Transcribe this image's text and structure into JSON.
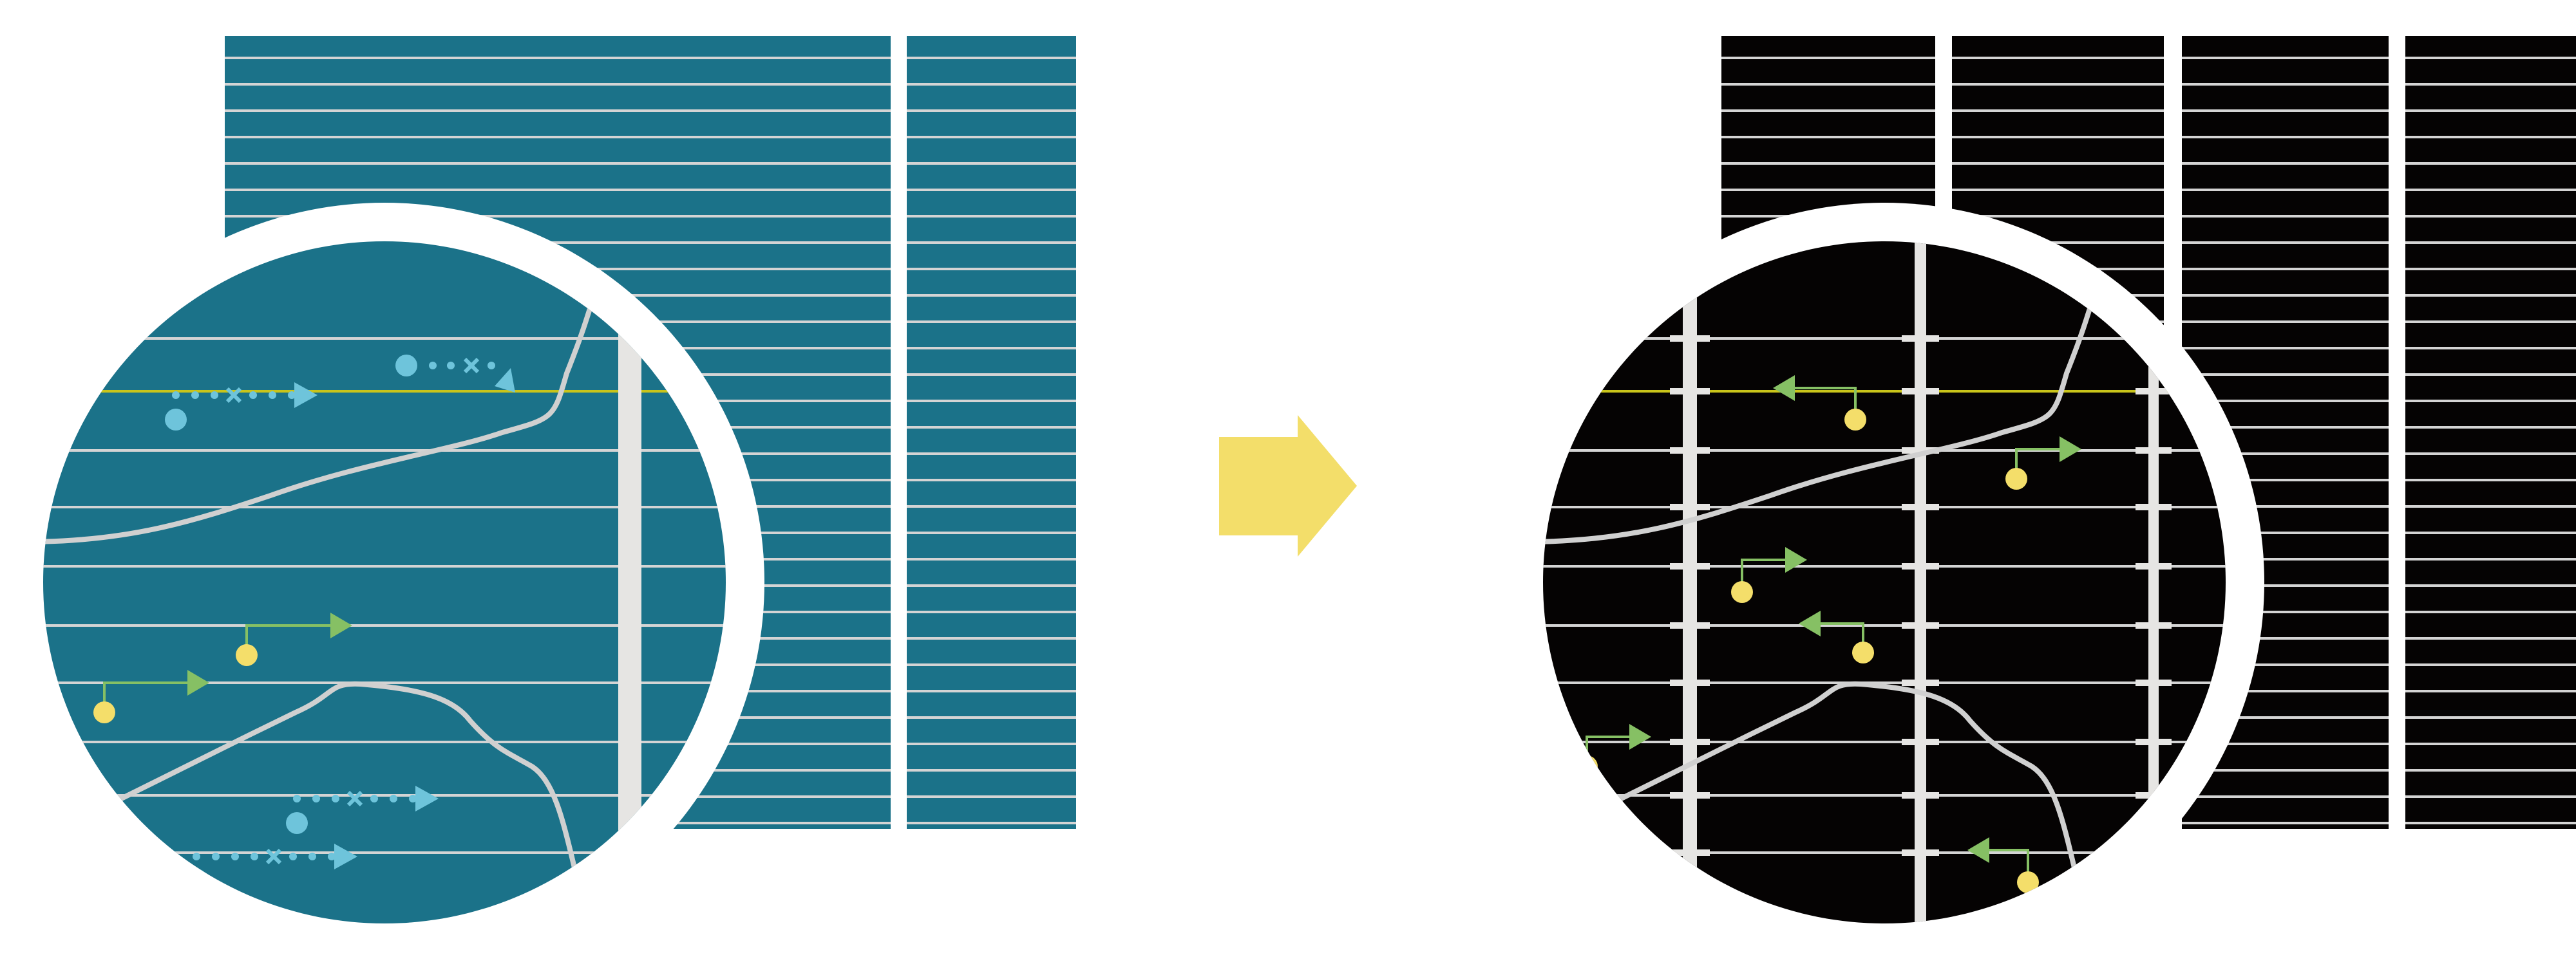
{
  "colors": {
    "background": "#ffffff",
    "left_panel": "#1b7289",
    "right_panel": "#050303",
    "grid_line": "#d4d4d4",
    "divider_bar": "#e6e5e3",
    "highlight_line": "#c9c41a",
    "blue_marker": "#6ec4db",
    "green_arrow": "#86c064",
    "yellow_dot": "#f4de6a",
    "transition_arrow": "#f3de6a",
    "curve": "#d0d0d0"
  },
  "icons": {
    "transition": "right-arrow-icon",
    "left_markers": "dotted-blue-arrow-icon",
    "right_markers": "yellow-dot-green-arrow-icon"
  }
}
